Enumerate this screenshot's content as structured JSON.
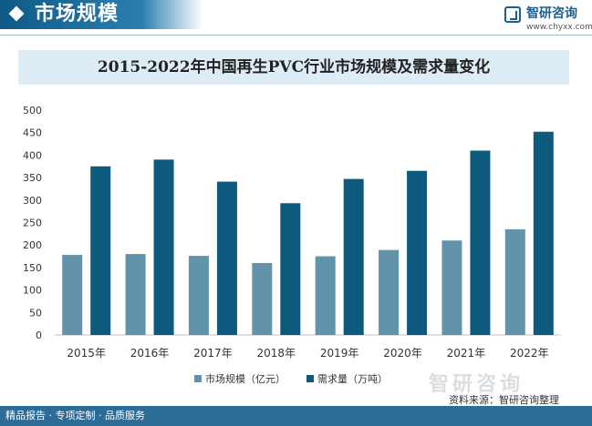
{
  "header": {
    "title": "市场规模"
  },
  "logo": {
    "name": "智研咨询",
    "url": "www.chyxx.com"
  },
  "chart_data": {
    "type": "bar",
    "title": "2015-2022年中国再生PVC行业市场规模及需求量变化",
    "categories": [
      "2015年",
      "2016年",
      "2017年",
      "2018年",
      "2019年",
      "2020年",
      "2021年",
      "2022年"
    ],
    "series": [
      {
        "name": "市场规模（亿元）",
        "color": "#6393ab",
        "values": [
          178,
          180,
          176,
          160,
          175,
          189,
          210,
          235
        ]
      },
      {
        "name": "需求量（万吨）",
        "color": "#0d5a7e",
        "values": [
          375,
          390,
          341,
          293,
          347,
          365,
          410,
          452
        ]
      }
    ],
    "yticks": [
      "0",
      "50",
      "100",
      "150",
      "200",
      "250",
      "300",
      "350",
      "400",
      "450",
      "500"
    ],
    "ylim": [
      0,
      500
    ],
    "grid": false,
    "legend": "bottom",
    "xlabel": "",
    "ylabel": ""
  },
  "watermark": {
    "brand": "智研咨询"
  },
  "source": "资料来源：智研咨询整理",
  "footer": {
    "left": "精品报告 · 专项定制 · 品质服务"
  }
}
